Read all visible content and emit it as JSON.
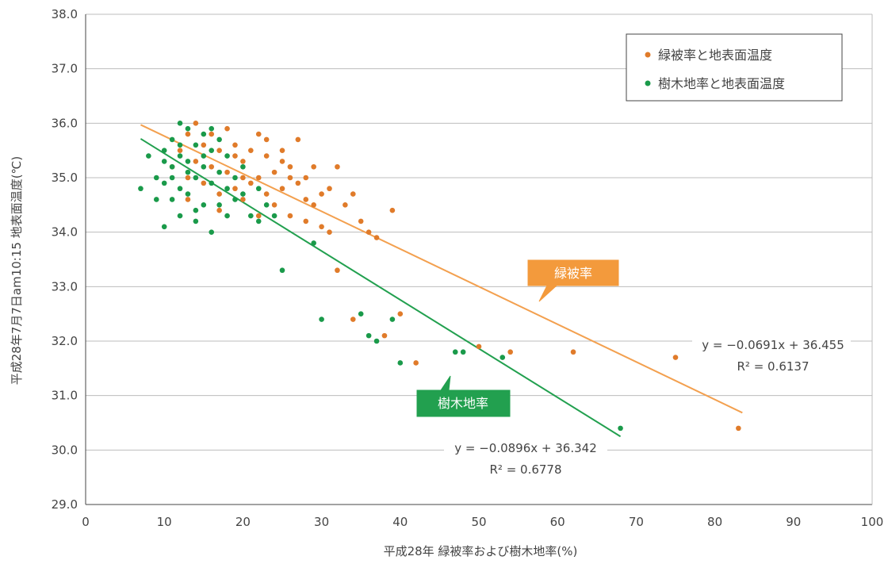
{
  "chart_data": {
    "type": "scatter",
    "xlabel": "平成28年 緑被率および樹木地率(%)",
    "ylabel": "平成28年7月7日am10:15 地表面温度(℃)",
    "xlim": [
      0,
      100
    ],
    "ylim": [
      29.0,
      38.0
    ],
    "x_ticks": [
      "0",
      "10",
      "20",
      "30",
      "40",
      "50",
      "60",
      "70",
      "80",
      "90",
      "100"
    ],
    "y_ticks": [
      "29.0",
      "30.0",
      "31.0",
      "32.0",
      "33.0",
      "34.0",
      "35.0",
      "36.0",
      "37.0",
      "38.0"
    ],
    "grid": "horizontal",
    "legend_position": "top-right",
    "legend": [
      "緑被率と地表面温度",
      "樹木地率と地表面温度"
    ],
    "colors": {
      "green_cover": "#e07b2a",
      "tree_cover": "#1a9a4a"
    },
    "series": [
      {
        "name": "緑被率と地表面温度",
        "color": "#e07b2a",
        "points": [
          [
            11,
            35.2
          ],
          [
            12,
            35.5
          ],
          [
            13,
            35.8
          ],
          [
            13,
            35.0
          ],
          [
            14,
            36.0
          ],
          [
            14,
            35.3
          ],
          [
            15,
            35.6
          ],
          [
            15,
            34.9
          ],
          [
            16,
            35.8
          ],
          [
            16,
            35.2
          ],
          [
            17,
            35.5
          ],
          [
            17,
            34.7
          ],
          [
            18,
            35.9
          ],
          [
            18,
            35.1
          ],
          [
            19,
            35.6
          ],
          [
            19,
            34.8
          ],
          [
            20,
            35.3
          ],
          [
            20,
            34.6
          ],
          [
            21,
            35.5
          ],
          [
            21,
            34.9
          ],
          [
            22,
            35.8
          ],
          [
            22,
            35.0
          ],
          [
            23,
            35.4
          ],
          [
            23,
            34.7
          ],
          [
            24,
            35.1
          ],
          [
            24,
            34.5
          ],
          [
            25,
            35.3
          ],
          [
            25,
            34.8
          ],
          [
            26,
            35.0
          ],
          [
            26,
            34.3
          ],
          [
            27,
            35.7
          ],
          [
            27,
            34.9
          ],
          [
            28,
            34.6
          ],
          [
            28,
            34.2
          ],
          [
            29,
            35.2
          ],
          [
            29,
            34.5
          ],
          [
            30,
            34.7
          ],
          [
            30,
            34.1
          ],
          [
            31,
            34.8
          ],
          [
            31,
            34.0
          ],
          [
            32,
            35.2
          ],
          [
            32,
            33.3
          ],
          [
            33,
            34.5
          ],
          [
            34,
            34.7
          ],
          [
            35,
            34.2
          ],
          [
            36,
            34.0
          ],
          [
            37,
            33.9
          ],
          [
            38,
            32.1
          ],
          [
            39,
            34.4
          ],
          [
            40,
            32.5
          ],
          [
            34,
            32.4
          ],
          [
            42,
            31.6
          ],
          [
            50,
            31.9
          ],
          [
            54,
            31.8
          ],
          [
            62,
            31.8
          ],
          [
            75,
            31.7
          ],
          [
            83,
            30.4
          ],
          [
            13,
            34.6
          ],
          [
            17,
            34.4
          ],
          [
            20,
            35.0
          ],
          [
            23,
            35.7
          ],
          [
            25,
            35.5
          ],
          [
            19,
            35.4
          ],
          [
            22,
            34.3
          ],
          [
            26,
            35.2
          ],
          [
            28,
            35.0
          ]
        ]
      },
      {
        "name": "樹木地率と地表面温度",
        "color": "#1a9a4a",
        "points": [
          [
            7,
            34.8
          ],
          [
            8,
            35.4
          ],
          [
            9,
            35.0
          ],
          [
            9,
            34.6
          ],
          [
            10,
            35.5
          ],
          [
            10,
            34.9
          ],
          [
            10,
            34.1
          ],
          [
            11,
            35.7
          ],
          [
            11,
            35.2
          ],
          [
            11,
            34.6
          ],
          [
            12,
            36.0
          ],
          [
            12,
            35.4
          ],
          [
            12,
            34.8
          ],
          [
            12,
            34.3
          ],
          [
            13,
            35.9
          ],
          [
            13,
            35.3
          ],
          [
            13,
            34.7
          ],
          [
            14,
            35.6
          ],
          [
            14,
            35.0
          ],
          [
            14,
            34.4
          ],
          [
            15,
            35.8
          ],
          [
            15,
            35.2
          ],
          [
            15,
            34.5
          ],
          [
            16,
            35.5
          ],
          [
            16,
            34.9
          ],
          [
            16,
            34.0
          ],
          [
            17,
            35.7
          ],
          [
            17,
            35.1
          ],
          [
            17,
            34.5
          ],
          [
            18,
            35.4
          ],
          [
            18,
            34.8
          ],
          [
            19,
            35.0
          ],
          [
            19,
            34.6
          ],
          [
            20,
            35.2
          ],
          [
            20,
            34.7
          ],
          [
            21,
            34.3
          ],
          [
            22,
            34.8
          ],
          [
            22,
            34.2
          ],
          [
            23,
            34.5
          ],
          [
            24,
            34.3
          ],
          [
            25,
            33.3
          ],
          [
            29,
            33.8
          ],
          [
            30,
            32.4
          ],
          [
            35,
            32.5
          ],
          [
            36,
            32.1
          ],
          [
            37,
            32.0
          ],
          [
            39,
            32.4
          ],
          [
            40,
            31.6
          ],
          [
            47,
            31.8
          ],
          [
            48,
            31.8
          ],
          [
            53,
            31.7
          ],
          [
            68,
            30.4
          ],
          [
            11,
            35.0
          ],
          [
            13,
            35.1
          ],
          [
            14,
            34.2
          ],
          [
            15,
            35.4
          ],
          [
            16,
            35.9
          ],
          [
            18,
            34.3
          ],
          [
            12,
            35.6
          ],
          [
            10,
            35.3
          ]
        ]
      }
    ],
    "trendlines": [
      {
        "series": "緑被率と地表面温度",
        "slope": -0.0691,
        "intercept": 36.455,
        "x_range": [
          7,
          83.5
        ],
        "equation": "y = −0.0691x + 36.455",
        "r2": "R² = 0.6137"
      },
      {
        "series": "樹木地率と地表面温度",
        "slope": -0.0896,
        "intercept": 36.342,
        "x_range": [
          7,
          68
        ],
        "equation": "y = −0.0896x + 36.342",
        "r2": "R² = 0.6778"
      }
    ],
    "callouts": [
      {
        "text": "緑被率",
        "series": "緑被率と地表面温度"
      },
      {
        "text": "樹木地率",
        "series": "樹木地率と地表面温度"
      }
    ]
  }
}
